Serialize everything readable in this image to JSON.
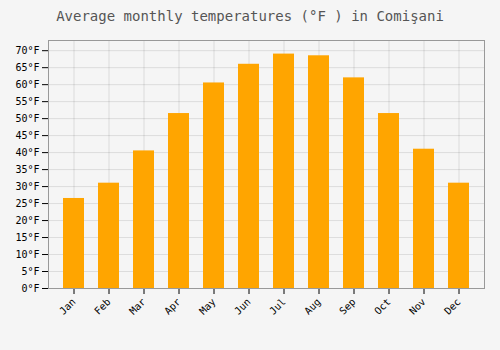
{
  "chart_data": {
    "type": "bar",
    "title": "Average monthly temperatures (°F ) in Comişani",
    "categories": [
      "Jan",
      "Feb",
      "Mar",
      "Apr",
      "May",
      "Jun",
      "Jul",
      "Aug",
      "Sep",
      "Oct",
      "Nov",
      "Dec"
    ],
    "values": [
      26.5,
      31.0,
      40.5,
      51.5,
      60.5,
      66.0,
      69.0,
      68.5,
      62.0,
      51.5,
      41.0,
      31.0
    ],
    "color": "#FFA500",
    "ylim": [
      0,
      73
    ],
    "yticks": [
      {
        "value": 0,
        "label": "0°F"
      },
      {
        "value": 5,
        "label": "5°F"
      },
      {
        "value": 10,
        "label": "10°F"
      },
      {
        "value": 15,
        "label": "15°F"
      },
      {
        "value": 20,
        "label": "20°F"
      },
      {
        "value": 25,
        "label": "25°F"
      },
      {
        "value": 30,
        "label": "30°F"
      },
      {
        "value": 35,
        "label": "35°F"
      },
      {
        "value": 40,
        "label": "40°F"
      },
      {
        "value": 45,
        "label": "45°F"
      },
      {
        "value": 50,
        "label": "50°F"
      },
      {
        "value": 55,
        "label": "55°F"
      },
      {
        "value": 60,
        "label": "60°F"
      },
      {
        "value": 65,
        "label": "65°F"
      },
      {
        "value": 70,
        "label": "70°F"
      }
    ],
    "grid": true
  }
}
